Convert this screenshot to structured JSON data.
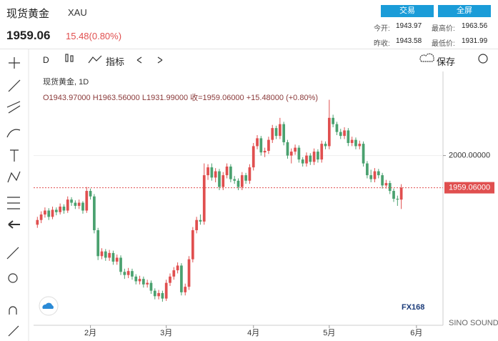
{
  "header": {
    "name": "现货黄金",
    "code": "XAU",
    "price": "1959.06",
    "change": "15.48(0.80%)",
    "buttons": [
      "交易",
      "全屏"
    ],
    "stats": [
      [
        "今开:",
        "1943.97"
      ],
      [
        "最高价:",
        "1963.56"
      ],
      [
        "昨收:",
        "1943.58"
      ],
      [
        "最低价:",
        "1931.99"
      ]
    ]
  },
  "toolbar": {
    "interval": "D",
    "indicators": "指标",
    "save": "保存"
  },
  "watermark": {
    "logo": "FX168",
    "sub": "SINO SOUND"
  },
  "chart_data": {
    "type": "candlestick",
    "title": "现货黄金, 1D",
    "subtitle": "O1943.97000  H1963.56000  L1931.99000  收=1959.06000  +15.48000 (+0.80%)",
    "up_color": "#e04f4f",
    "down_color": "#4aa16f",
    "xlim": [
      -1,
      107
    ],
    "xticks": [
      {
        "value": 14,
        "label": "2月"
      },
      {
        "value": 34,
        "label": "3月"
      },
      {
        "value": 57,
        "label": "4月"
      },
      {
        "value": 77,
        "label": "5月"
      },
      {
        "value": 100,
        "label": "6月"
      }
    ],
    "ylim": [
      1784,
      2107
    ],
    "yticks": [
      {
        "value": 2000,
        "label": "2000.00000"
      }
    ],
    "last_price": {
      "value": 1959.06,
      "label": "1959.06000"
    },
    "ohlc": [
      [
        1912,
        1922,
        1908,
        1918
      ],
      [
        1918,
        1929,
        1914,
        1925
      ],
      [
        1925,
        1934,
        1921,
        1930
      ],
      [
        1930,
        1933,
        1918,
        1922
      ],
      [
        1922,
        1935,
        1919,
        1931
      ],
      [
        1931,
        1934,
        1924,
        1928
      ],
      [
        1928,
        1939,
        1925,
        1935
      ],
      [
        1935,
        1938,
        1926,
        1930
      ],
      [
        1930,
        1948,
        1927,
        1944
      ],
      [
        1944,
        1947,
        1936,
        1940
      ],
      [
        1940,
        1943,
        1932,
        1936
      ],
      [
        1936,
        1944,
        1932,
        1940
      ],
      [
        1940,
        1942,
        1926,
        1930
      ],
      [
        1930,
        1960,
        1927,
        1955
      ],
      [
        1955,
        1958,
        1944,
        1948
      ],
      [
        1948,
        1951,
        1901,
        1905
      ],
      [
        1905,
        1908,
        1867,
        1872
      ],
      [
        1872,
        1882,
        1868,
        1878
      ],
      [
        1878,
        1881,
        1866,
        1870
      ],
      [
        1870,
        1880,
        1866,
        1876
      ],
      [
        1876,
        1879,
        1861,
        1865
      ],
      [
        1865,
        1874,
        1861,
        1870
      ],
      [
        1870,
        1873,
        1848,
        1852
      ],
      [
        1852,
        1856,
        1843,
        1848
      ],
      [
        1848,
        1857,
        1844,
        1853
      ],
      [
        1853,
        1856,
        1842,
        1846
      ],
      [
        1846,
        1849,
        1836,
        1840
      ],
      [
        1840,
        1847,
        1836,
        1843
      ],
      [
        1843,
        1846,
        1832,
        1836
      ],
      [
        1836,
        1842,
        1832,
        1838
      ],
      [
        1838,
        1841,
        1824,
        1828
      ],
      [
        1828,
        1831,
        1817,
        1821
      ],
      [
        1821,
        1829,
        1817,
        1825
      ],
      [
        1825,
        1828,
        1814,
        1818
      ],
      [
        1818,
        1842,
        1815,
        1838
      ],
      [
        1838,
        1850,
        1834,
        1846
      ],
      [
        1846,
        1858,
        1842,
        1854
      ],
      [
        1854,
        1864,
        1850,
        1860
      ],
      [
        1860,
        1863,
        1822,
        1826
      ],
      [
        1826,
        1837,
        1822,
        1833
      ],
      [
        1833,
        1872,
        1829,
        1868
      ],
      [
        1868,
        1909,
        1864,
        1905
      ],
      [
        1905,
        1922,
        1901,
        1918
      ],
      [
        1918,
        1925,
        1912,
        1916
      ],
      [
        1916,
        1990,
        1912,
        1975
      ],
      [
        1975,
        1989,
        1969,
        1985
      ],
      [
        1985,
        1990,
        1968,
        1972
      ],
      [
        1972,
        1984,
        1966,
        1980
      ],
      [
        1980,
        1983,
        1956,
        1960
      ],
      [
        1960,
        1979,
        1956,
        1975
      ],
      [
        1975,
        1990,
        1971,
        1986
      ],
      [
        1986,
        1989,
        1966,
        1970
      ],
      [
        1970,
        1974,
        1964,
        1968
      ],
      [
        1968,
        1971,
        1956,
        1960
      ],
      [
        1960,
        1979,
        1956,
        1975
      ],
      [
        1975,
        1978,
        1964,
        1968
      ],
      [
        1968,
        1989,
        1964,
        1985
      ],
      [
        1985,
        2016,
        1981,
        2012
      ],
      [
        2012,
        2026,
        2008,
        2022
      ],
      [
        2022,
        2025,
        2000,
        2004
      ],
      [
        2004,
        2010,
        1998,
        2006
      ],
      [
        2006,
        2024,
        2002,
        2020
      ],
      [
        2020,
        2039,
        2016,
        2035
      ],
      [
        2035,
        2038,
        2021,
        2025
      ],
      [
        2025,
        2048,
        2021,
        2040
      ],
      [
        2040,
        2043,
        2013,
        2017
      ],
      [
        2017,
        2020,
        1996,
        2000
      ],
      [
        2000,
        2009,
        1990,
        2005
      ],
      [
        2005,
        2014,
        2001,
        2010
      ],
      [
        2010,
        2013,
        1991,
        1995
      ],
      [
        1995,
        1998,
        1986,
        1990
      ],
      [
        1990,
        2004,
        1986,
        2000
      ],
      [
        2000,
        2003,
        1988,
        1992
      ],
      [
        1992,
        2009,
        1988,
        2005
      ],
      [
        2005,
        2008,
        1991,
        1995
      ],
      [
        1995,
        2019,
        1991,
        2015
      ],
      [
        2015,
        2018,
        2008,
        2012
      ],
      [
        2012,
        2071,
        2008,
        2048
      ],
      [
        2048,
        2052,
        2036,
        2040
      ],
      [
        2040,
        2043,
        2026,
        2030
      ],
      [
        2030,
        2034,
        2021,
        2025
      ],
      [
        2025,
        2036,
        2021,
        2032
      ],
      [
        2032,
        2035,
        2012,
        2016
      ],
      [
        2016,
        2024,
        2012,
        2020
      ],
      [
        2020,
        2023,
        2008,
        2012
      ],
      [
        2012,
        2019,
        2008,
        2015
      ],
      [
        2015,
        2018,
        1986,
        1990
      ],
      [
        1990,
        1993,
        1971,
        1975
      ],
      [
        1975,
        1982,
        1966,
        1970
      ],
      [
        1970,
        1984,
        1966,
        1980
      ],
      [
        1980,
        1983,
        1971,
        1975
      ],
      [
        1975,
        1978,
        1958,
        1962
      ],
      [
        1962,
        1969,
        1958,
        1965
      ],
      [
        1965,
        1968,
        1951,
        1955
      ],
      [
        1955,
        1958,
        1941,
        1945
      ],
      [
        1945,
        1949,
        1936,
        1943.97
      ],
      [
        1943.97,
        1963.56,
        1931.99,
        1959.06
      ]
    ]
  }
}
